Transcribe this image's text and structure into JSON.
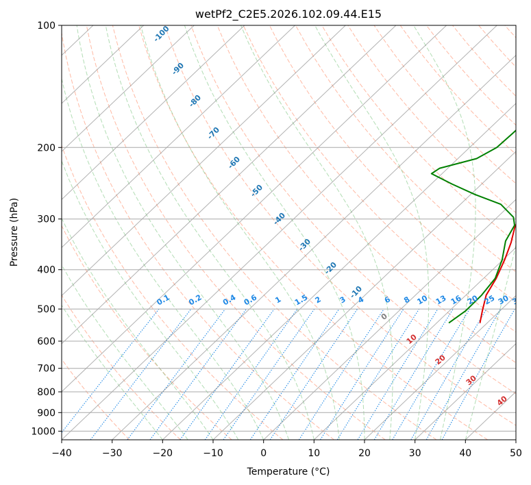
{
  "chart_data": {
    "type": "line",
    "title": "wetPf2_C2E5.2026.102.09.44.E15",
    "xlabel": "Temperature (°C)",
    "ylabel": "Pressure (hPa)",
    "xlim": [
      -40,
      50
    ],
    "ylim": [
      1050,
      100
    ],
    "x_ticks": [
      -40,
      -30,
      -20,
      -10,
      0,
      10,
      20,
      30,
      40,
      50
    ],
    "x_tick_labels": [
      "−40",
      "−30",
      "−20",
      "−10",
      "0",
      "10",
      "20",
      "30",
      "40",
      "50"
    ],
    "y_ticks": [
      100,
      200,
      300,
      400,
      500,
      600,
      700,
      800,
      900,
      1000
    ],
    "y_tick_labels": [
      "100",
      "200",
      "300",
      "400",
      "500",
      "600",
      "700",
      "800",
      "900",
      "1000"
    ],
    "skew_note": "isotherms skewed to the right with height",
    "series": [
      {
        "name": "Temperature",
        "color": "#e00000",
        "points": [
          [
            18.5,
            540
          ],
          [
            16.5,
            505
          ],
          [
            14.0,
            462
          ],
          [
            12.5,
            420
          ],
          [
            10.3,
            378
          ],
          [
            8.0,
            343
          ],
          [
            5.6,
            315
          ],
          [
            3.8,
            290
          ],
          [
            3.9,
            270
          ],
          [
            6.0,
            250
          ],
          [
            9.3,
            228
          ],
          [
            11.9,
            210
          ],
          [
            12.4,
            198
          ],
          [
            12.3,
            180
          ],
          [
            12.9,
            165
          ],
          [
            11.6,
            152
          ],
          [
            10.3,
            140
          ],
          [
            10.4,
            130
          ],
          [
            11.2,
            120
          ],
          [
            10.1,
            108
          ],
          [
            9.9,
            100
          ]
        ]
      },
      {
        "name": "Dewpoint",
        "color": "#008000",
        "points": [
          [
            12.4,
            540
          ],
          [
            13.2,
            505
          ],
          [
            13.1,
            462
          ],
          [
            12.3,
            420
          ],
          [
            9.8,
            378
          ],
          [
            6.6,
            340
          ],
          [
            5.1,
            311
          ],
          [
            3.2,
            297
          ],
          [
            -2.0,
            276
          ],
          [
            -9.2,
            261
          ],
          [
            -15.9,
            246
          ],
          [
            -22.1,
            232
          ],
          [
            -21.6,
            225
          ],
          [
            -16.3,
            213
          ],
          [
            -14.6,
            200
          ],
          [
            -14.4,
            185
          ],
          [
            -14.3,
            170
          ],
          [
            -12.2,
            150
          ],
          [
            -8.4,
            130
          ],
          [
            -3.4,
            113
          ],
          [
            -1.0,
            100
          ]
        ]
      }
    ],
    "isotherm_labels": [
      "-100",
      "-90",
      "-80",
      "-70",
      "-60",
      "-50",
      "-40",
      "-30",
      "-20",
      "-10"
    ],
    "mixing_ratio_labels": [
      "0.1",
      "0.2",
      "0.4",
      "0.6",
      "1",
      "1.5",
      "2",
      "3",
      "4",
      "6",
      "8",
      "10",
      "13",
      "16",
      "20",
      "25",
      "30",
      "36"
    ],
    "dry_adiabat_labels": [
      "0",
      "10",
      "20",
      "30",
      "40"
    ],
    "colors": {
      "isotherm": "#7f7f7f",
      "isotherm_label": "#1f77b4",
      "mixing_ratio": "#1e88e5",
      "dry_adiabat": "#ff8a65",
      "moist_adiabat": "#66bb6a",
      "dry_adiabat_label": "#d32f2f",
      "mixing_ratio_label": "#1e88e5",
      "grid": "#a8a8a8"
    }
  }
}
